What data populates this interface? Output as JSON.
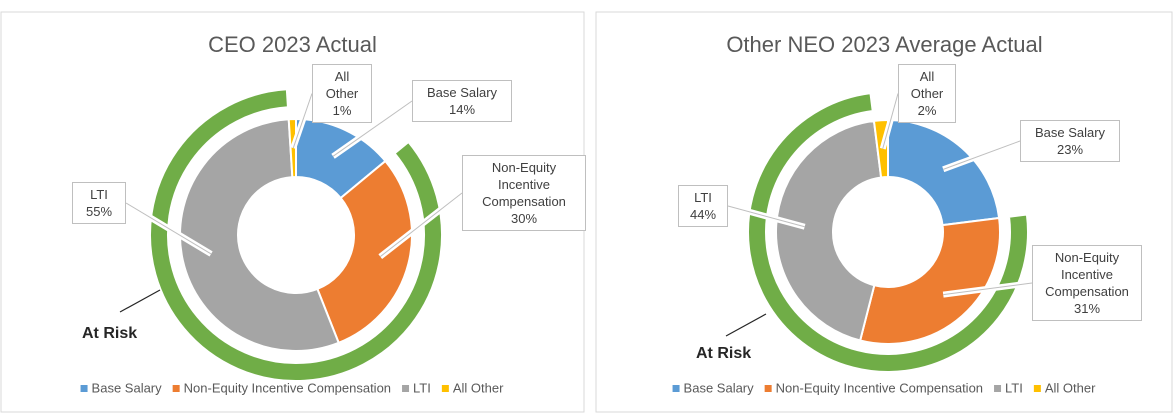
{
  "charts": [
    {
      "type": "donut",
      "title": "CEO 2023 Actual",
      "categories": [
        "Base Salary",
        "Non-Equity Incentive Compensation",
        "LTI",
        "All Other"
      ],
      "values": [
        14,
        30,
        55,
        1
      ],
      "value_labels": [
        "14%",
        "30%",
        "55%",
        "1%"
      ],
      "colors": [
        "#5b9bd5",
        "#ed7d31",
        "#a5a5a5",
        "#ffc000"
      ],
      "outer_ring": {
        "label": "At Risk",
        "color": "#70ad47",
        "categories": [
          "Non-Equity Incentive Compensation",
          "LTI"
        ]
      },
      "legend": "bottom"
    },
    {
      "type": "donut",
      "title": "Other NEO 2023 Average Actual",
      "categories": [
        "Base Salary",
        "Non-Equity Incentive Compensation",
        "LTI",
        "All Other"
      ],
      "values": [
        23,
        31,
        44,
        2
      ],
      "value_labels": [
        "23%",
        "31%",
        "44%",
        "2%"
      ],
      "colors": [
        "#5b9bd5",
        "#ed7d31",
        "#a5a5a5",
        "#ffc000"
      ],
      "outer_ring": {
        "label": "At Risk",
        "color": "#70ad47",
        "categories": [
          "Non-Equity Incentive Compensation",
          "LTI"
        ]
      },
      "legend": "bottom"
    }
  ]
}
